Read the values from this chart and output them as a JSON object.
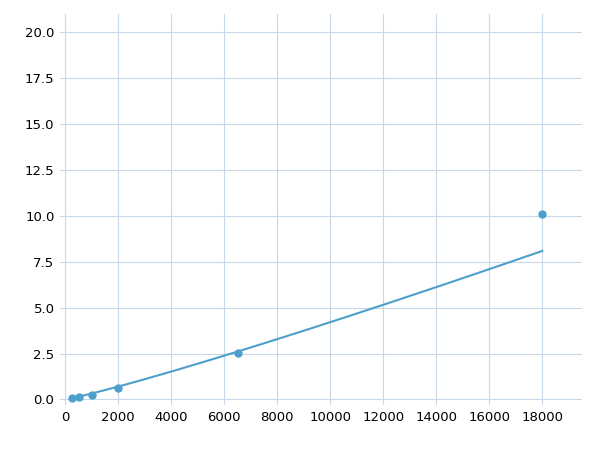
{
  "x": [
    250,
    500,
    1000,
    2000,
    6500,
    18000
  ],
  "y": [
    0.1,
    0.15,
    0.22,
    0.6,
    2.55,
    10.1
  ],
  "line_color": "#4d9fcc",
  "marker_color": "#4d9fcc",
  "marker_size": 5,
  "line_width": 1.5,
  "xlim": [
    -200,
    19500
  ],
  "ylim": [
    -0.3,
    21.0
  ],
  "xticks": [
    0,
    2000,
    4000,
    6000,
    8000,
    10000,
    12000,
    14000,
    16000,
    18000
  ],
  "yticks": [
    0.0,
    2.5,
    5.0,
    7.5,
    10.0,
    12.5,
    15.0,
    17.5,
    20.0
  ],
  "grid_color": "#c8d8e8",
  "background_color": "#ffffff",
  "tick_fontsize": 9.5
}
